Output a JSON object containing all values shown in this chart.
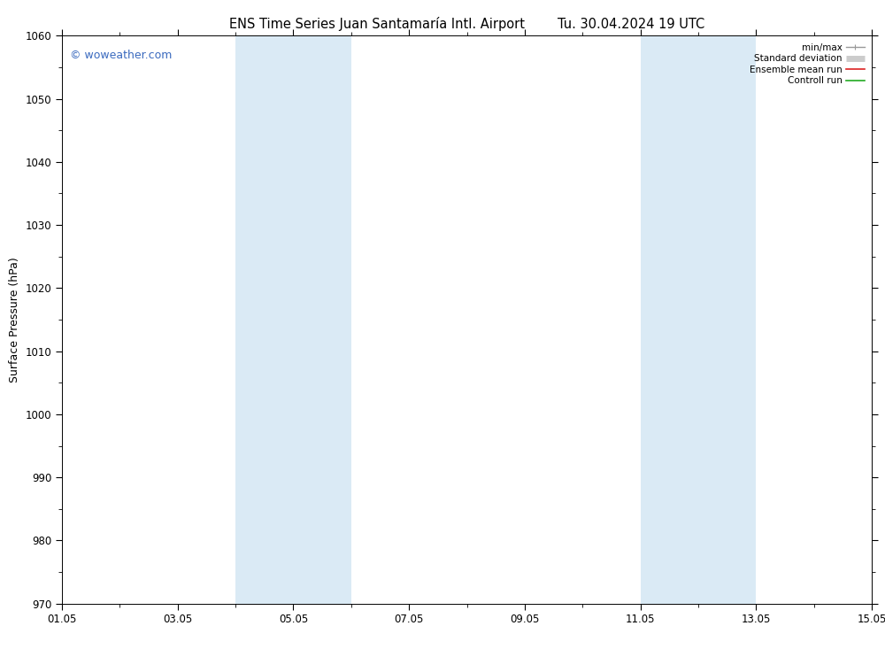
{
  "title_left": "ENS Time Series Juan Santamaría Intl. Airport",
  "title_right": "Tu. 30.04.2024 19 UTC",
  "ylabel": "Surface Pressure (hPa)",
  "ylim": [
    970,
    1060
  ],
  "yticks": [
    970,
    980,
    990,
    1000,
    1010,
    1020,
    1030,
    1040,
    1050,
    1060
  ],
  "xlim_start": 0,
  "xlim_end": 14,
  "xtick_labels": [
    "01.05",
    "03.05",
    "05.05",
    "07.05",
    "09.05",
    "11.05",
    "13.05",
    "15.05"
  ],
  "xtick_positions": [
    0,
    2,
    4,
    6,
    8,
    10,
    12,
    14
  ],
  "shaded_bands": [
    {
      "xmin": 3.0,
      "xmax": 5.0,
      "color": "#daeaf5"
    },
    {
      "xmin": 10.0,
      "xmax": 12.0,
      "color": "#daeaf5"
    }
  ],
  "watermark": "© woweather.com",
  "watermark_color": "#3a6abf",
  "background_color": "#ffffff",
  "plot_bg_color": "#ffffff",
  "legend_items": [
    {
      "label": "min/max",
      "color": "#999999",
      "lw": 1.0
    },
    {
      "label": "Standard deviation",
      "color": "#cccccc",
      "lw": 5
    },
    {
      "label": "Ensemble mean run",
      "color": "#dd2222",
      "lw": 1.2
    },
    {
      "label": "Controll run",
      "color": "#22aa22",
      "lw": 1.2
    }
  ],
  "title_fontsize": 10.5,
  "tick_fontsize": 8.5,
  "ylabel_fontsize": 9,
  "watermark_fontsize": 9
}
